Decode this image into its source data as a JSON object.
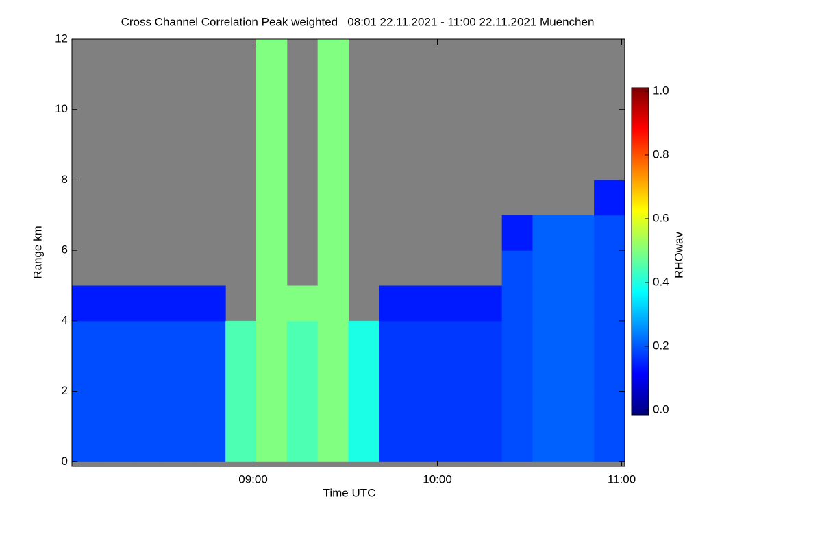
{
  "chart_data": {
    "type": "heatmap",
    "title": "Cross Channel Correlation Peak weighted   08:01 22.11.2021 - 11:00 22.11.2021 Muenchen",
    "x_label": "Time UTC",
    "y_label": "Range km",
    "colorbar_label": "RHOwav",
    "x": [
      481,
      491,
      501,
      511,
      521,
      531,
      541,
      551,
      561,
      571,
      581,
      591,
      601,
      611,
      621,
      631,
      641,
      651,
      661
    ],
    "y": [
      0,
      1,
      2,
      3,
      4,
      5,
      6,
      7,
      8,
      9,
      10,
      11,
      12
    ],
    "z": [
      [
        0.2,
        0.2,
        0.2,
        0.2,
        0.2,
        0.45,
        0.5,
        0.45,
        0.5,
        0.4,
        0.18,
        0.18,
        0.18,
        0.18,
        0.2,
        0.22,
        0.22,
        0.2
      ],
      [
        0.2,
        0.2,
        0.2,
        0.2,
        0.2,
        0.45,
        0.5,
        0.45,
        0.5,
        0.4,
        0.18,
        0.18,
        0.18,
        0.18,
        0.2,
        0.22,
        0.22,
        0.2
      ],
      [
        0.2,
        0.2,
        0.2,
        0.2,
        0.2,
        0.45,
        0.5,
        0.45,
        0.5,
        0.4,
        0.18,
        0.18,
        0.18,
        0.18,
        0.2,
        0.22,
        0.22,
        0.2
      ],
      [
        0.2,
        0.2,
        0.2,
        0.2,
        0.2,
        0.45,
        0.5,
        0.45,
        0.5,
        0.4,
        0.18,
        0.18,
        0.18,
        0.18,
        0.2,
        0.22,
        0.22,
        0.2
      ],
      [
        0.15,
        0.15,
        0.15,
        0.15,
        0.15,
        null,
        0.5,
        0.5,
        0.5,
        null,
        0.15,
        0.15,
        0.15,
        0.15,
        0.2,
        0.22,
        0.22,
        0.2
      ],
      [
        null,
        null,
        null,
        null,
        null,
        null,
        0.5,
        null,
        0.5,
        null,
        null,
        null,
        null,
        null,
        0.2,
        0.22,
        0.22,
        0.2
      ],
      [
        null,
        null,
        null,
        null,
        null,
        null,
        0.5,
        null,
        0.5,
        null,
        null,
        null,
        null,
        null,
        0.15,
        0.22,
        0.22,
        0.2
      ],
      [
        null,
        null,
        null,
        null,
        null,
        null,
        0.5,
        null,
        0.5,
        null,
        null,
        null,
        null,
        null,
        null,
        null,
        null,
        0.15
      ],
      [
        null,
        null,
        null,
        null,
        null,
        null,
        0.5,
        null,
        0.5,
        null,
        null,
        null,
        null,
        null,
        null,
        null,
        null,
        null
      ],
      [
        null,
        null,
        null,
        null,
        null,
        null,
        0.5,
        null,
        0.5,
        null,
        null,
        null,
        null,
        null,
        null,
        null,
        null,
        null
      ],
      [
        null,
        null,
        null,
        null,
        null,
        null,
        0.5,
        null,
        0.5,
        null,
        null,
        null,
        null,
        null,
        null,
        null,
        null,
        null
      ],
      [
        null,
        null,
        null,
        null,
        null,
        null,
        0.5,
        null,
        0.5,
        null,
        null,
        null,
        null,
        null,
        null,
        null,
        null,
        null
      ]
    ],
    "xlim": [
      481,
      661
    ],
    "xticks": [
      {
        "value": 540,
        "label": "09:00"
      },
      {
        "value": 600,
        "label": "10:00"
      },
      {
        "value": 660,
        "label": "11:00"
      }
    ],
    "ylim": [
      -0.13,
      12
    ],
    "yticks": [
      0,
      2,
      4,
      6,
      8,
      10,
      12
    ],
    "clim": [
      0,
      1
    ],
    "cticks": [
      {
        "value": 0,
        "label": "0.0"
      },
      {
        "value": 0.2,
        "label": "0.2"
      },
      {
        "value": 0.4,
        "label": "0.4"
      },
      {
        "value": 0.6,
        "label": "0.6"
      },
      {
        "value": 0.8,
        "label": "0.8"
      },
      {
        "value": 1,
        "label": "1.0"
      }
    ],
    "colormap": "jet",
    "missing_color": "#808080"
  }
}
